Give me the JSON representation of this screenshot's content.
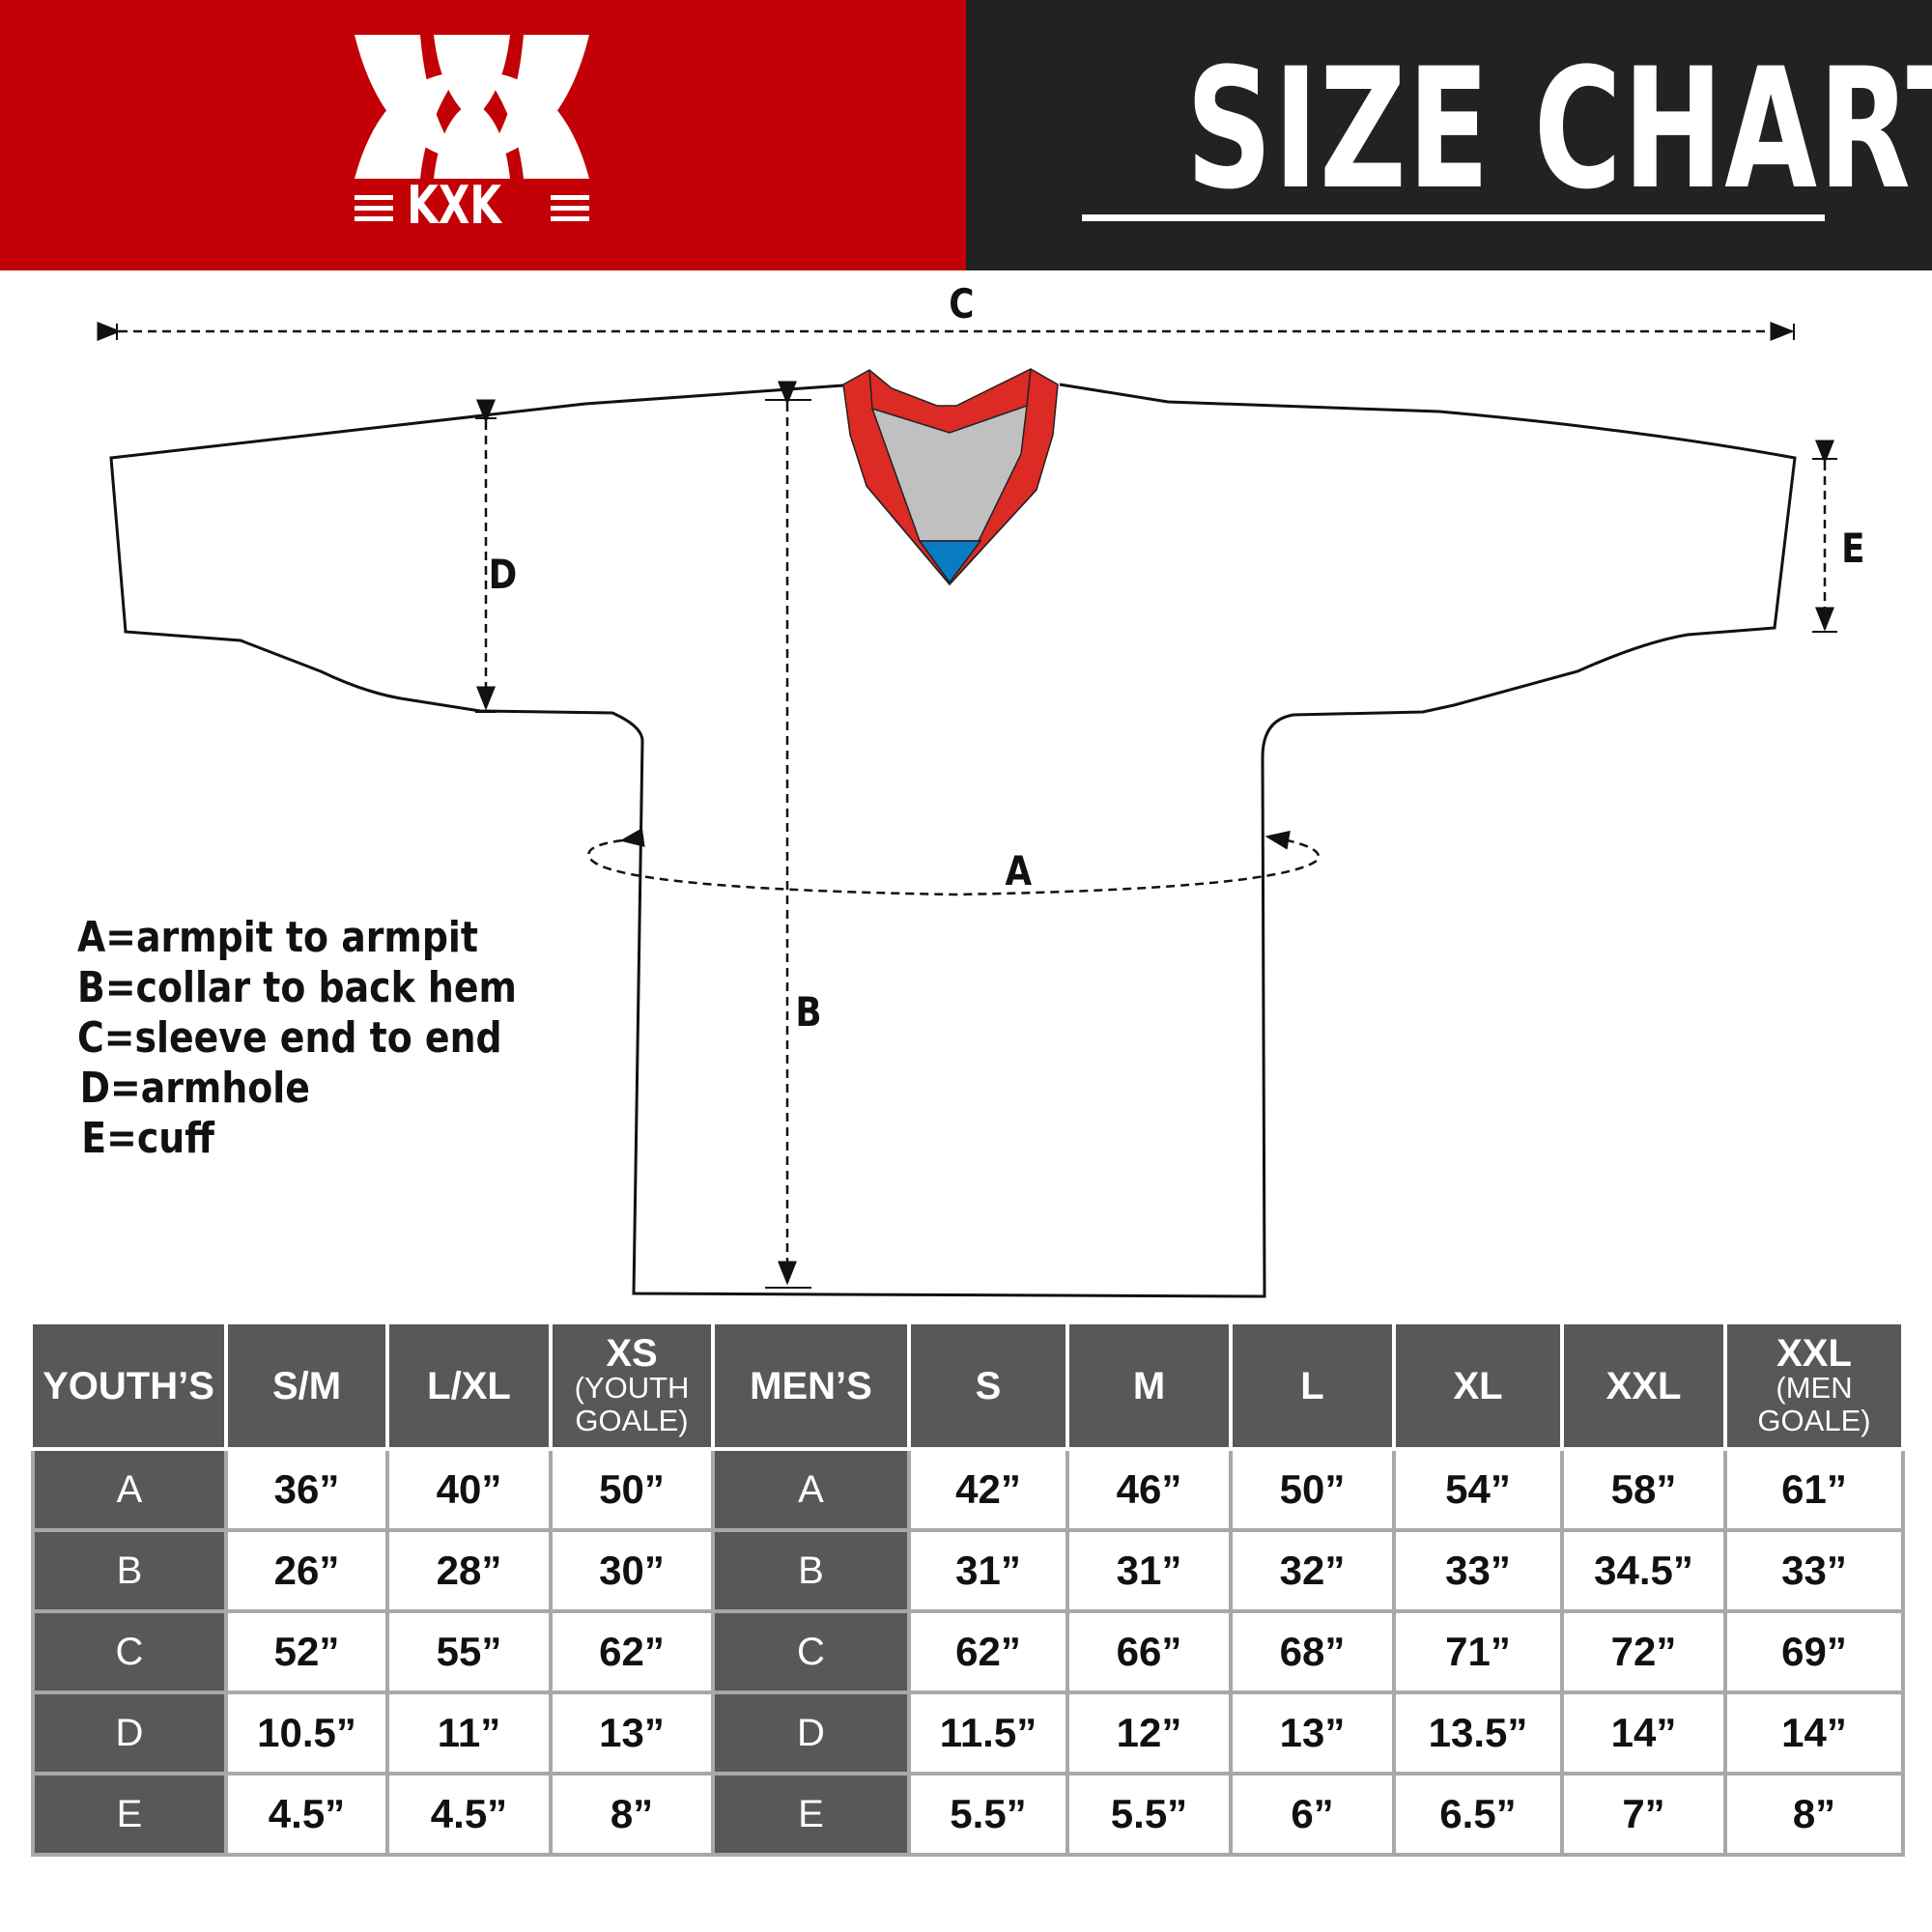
{
  "header": {
    "brand": "KXK",
    "title": "SIZE CHART",
    "brand_color": "#c20005",
    "title_bg_color": "#222222"
  },
  "diagram": {
    "labels": {
      "A": "A",
      "B": "B",
      "C": "C",
      "D": "D",
      "E": "E"
    },
    "collar_colors": {
      "trim": "#dc2a24",
      "inner": "#c0c0c0",
      "accent": "#0a7ac2"
    }
  },
  "legend": [
    "A=armpit to armpit",
    "B=collar to back hem",
    "C=sleeve end to end",
    "D=armhole",
    "E=cuff"
  ],
  "table": {
    "youth_header": "YOUTH’S",
    "youth_sizes": [
      {
        "label": "S/M",
        "sub": ""
      },
      {
        "label": "L/XL",
        "sub": ""
      },
      {
        "label": "XS",
        "sub": "(YOUTH GOALE)"
      }
    ],
    "men_header": "MEN’S",
    "men_sizes": [
      {
        "label": "S",
        "sub": ""
      },
      {
        "label": "M",
        "sub": ""
      },
      {
        "label": "L",
        "sub": ""
      },
      {
        "label": "XL",
        "sub": ""
      },
      {
        "label": "XXL",
        "sub": ""
      },
      {
        "label": "XXL",
        "sub": "(MEN GOALE)"
      }
    ],
    "rows": [
      {
        "measure": "A",
        "youth": [
          "36”",
          "40”",
          "50”"
        ],
        "men": [
          "42”",
          "46”",
          "50”",
          "54”",
          "58”",
          "61”"
        ]
      },
      {
        "measure": "B",
        "youth": [
          "26”",
          "28”",
          "30”"
        ],
        "men": [
          "31”",
          "31”",
          "32”",
          "33”",
          "34.5”",
          "33”"
        ]
      },
      {
        "measure": "C",
        "youth": [
          "52”",
          "55”",
          "62”"
        ],
        "men": [
          "62”",
          "66”",
          "68”",
          "71”",
          "72”",
          "69”"
        ]
      },
      {
        "measure": "D",
        "youth": [
          "10.5”",
          "11”",
          "13”"
        ],
        "men": [
          "11.5”",
          "12”",
          "13”",
          "13.5”",
          "14”",
          "14”"
        ]
      },
      {
        "measure": "E",
        "youth": [
          "4.5”",
          "4.5”",
          "8”"
        ],
        "men": [
          "5.5”",
          "5.5”",
          "6”",
          "6.5”",
          "7”",
          "8”"
        ]
      }
    ]
  }
}
